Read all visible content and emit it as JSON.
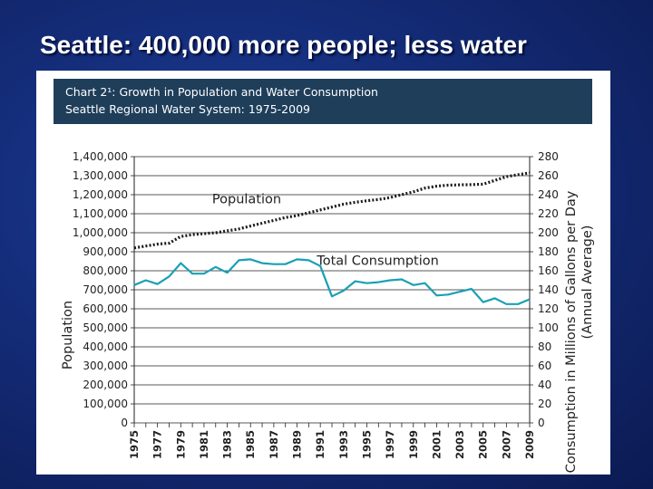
{
  "slide": {
    "title": "Seattle: 400,000 more people; less water"
  },
  "chart_header": {
    "line1": "Chart 2¹: Growth in Population and Water Consumption",
    "line2": "Seattle Regional Water System: 1975-2009"
  },
  "chart_data": {
    "type": "line",
    "title": "Chart 2¹: Growth in Population and Water Consumption",
    "subtitle": "Seattle Regional Water System: 1975-2009",
    "ylabel": "Population",
    "y2label_line1": "Consumption in Millions of Gallons per Day",
    "y2label_line2": "(Annual Average)",
    "ylim": [
      0,
      1400000
    ],
    "y2lim": [
      0,
      280
    ],
    "grid": true,
    "x": [
      1975,
      1976,
      1977,
      1978,
      1979,
      1980,
      1981,
      1982,
      1983,
      1984,
      1985,
      1986,
      1987,
      1988,
      1989,
      1990,
      1991,
      1992,
      1993,
      1994,
      1995,
      1996,
      1997,
      1998,
      1999,
      2000,
      2001,
      2002,
      2003,
      2004,
      2005,
      2006,
      2007,
      2008,
      2009
    ],
    "x_tick_labels": [
      "1975",
      "1977",
      "1979",
      "1981",
      "1983",
      "1985",
      "1987",
      "1989",
      "1991",
      "1993",
      "1995",
      "1997",
      "1999",
      "2001",
      "2003",
      "2005",
      "2007",
      "2009"
    ],
    "y_tick_labels": [
      "0",
      "100,000",
      "200,000",
      "300,000",
      "400,000",
      "500,000",
      "600,000",
      "700,000",
      "800,000",
      "900,000",
      "1,000,000",
      "1,100,000",
      "1,200,000",
      "1,300,000",
      "1,400,000"
    ],
    "y2_tick_labels": [
      "0",
      "20",
      "40",
      "60",
      "80",
      "100",
      "120",
      "140",
      "160",
      "180",
      "200",
      "220",
      "240",
      "260",
      "280"
    ],
    "series": [
      {
        "name": "Population",
        "axis": "left",
        "style": "dotted",
        "color": "#1a1a1a",
        "values": [
          920000,
          930000,
          940000,
          945000,
          980000,
          990000,
          995000,
          1000000,
          1010000,
          1020000,
          1035000,
          1050000,
          1065000,
          1080000,
          1090000,
          1105000,
          1120000,
          1135000,
          1150000,
          1160000,
          1168000,
          1175000,
          1185000,
          1200000,
          1215000,
          1235000,
          1245000,
          1250000,
          1252000,
          1253000,
          1255000,
          1275000,
          1295000,
          1305000,
          1315000
        ]
      },
      {
        "name": "Total Consumption",
        "axis": "right",
        "style": "solid",
        "color": "#1aa0b4",
        "values": [
          145,
          150,
          146,
          154,
          168,
          157,
          157,
          164,
          158,
          171,
          172,
          168,
          167,
          167,
          172,
          171,
          165,
          133,
          139,
          149,
          147,
          148,
          150,
          151,
          145,
          147,
          134,
          135,
          138,
          141,
          127,
          131,
          125,
          125,
          130
        ]
      }
    ],
    "annotations": [
      {
        "text": "Population",
        "series": "Population"
      },
      {
        "text": "Total Consumption",
        "series": "Total Consumption"
      }
    ]
  }
}
